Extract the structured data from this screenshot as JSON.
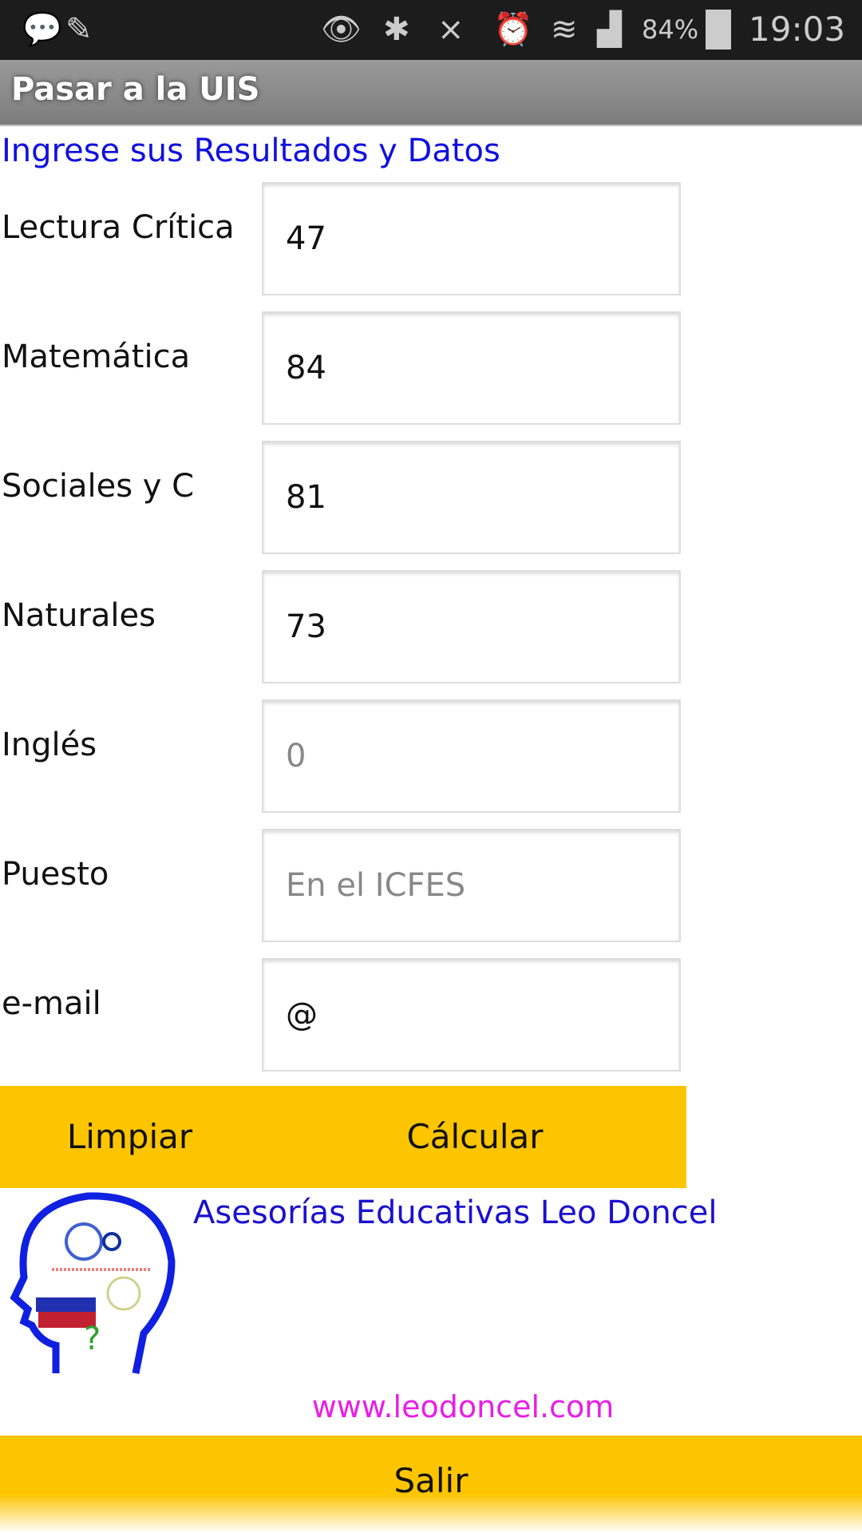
{
  "status_bar": {
    "battery": "84%",
    "time": "19:03"
  },
  "header": {
    "title": "Pasar a la UIS"
  },
  "form": {
    "heading": "Ingrese sus Resultados y Datos",
    "fields": [
      {
        "label": "Lectura Crítica",
        "value": "47",
        "placeholder": ""
      },
      {
        "label": "Matemática",
        "value": "84",
        "placeholder": ""
      },
      {
        "label": "Sociales y C",
        "value": "81",
        "placeholder": ""
      },
      {
        "label": "Naturales",
        "value": "73",
        "placeholder": ""
      },
      {
        "label": "Inglés",
        "value": "",
        "placeholder": "0"
      },
      {
        "label": "Puesto",
        "value": "",
        "placeholder": "En el ICFES"
      },
      {
        "label": "e-mail",
        "value": "@",
        "placeholder": ""
      }
    ]
  },
  "buttons": {
    "clear": "Limpiar",
    "calculate": "Cálcular",
    "exit": "Salir"
  },
  "footer": {
    "company": "Asesorías Educativas Leo Doncel",
    "website": "www.leodoncel.com"
  },
  "colors": {
    "accent": "#fcc500",
    "heading": "#1010e0",
    "website": "#e81ee8"
  }
}
